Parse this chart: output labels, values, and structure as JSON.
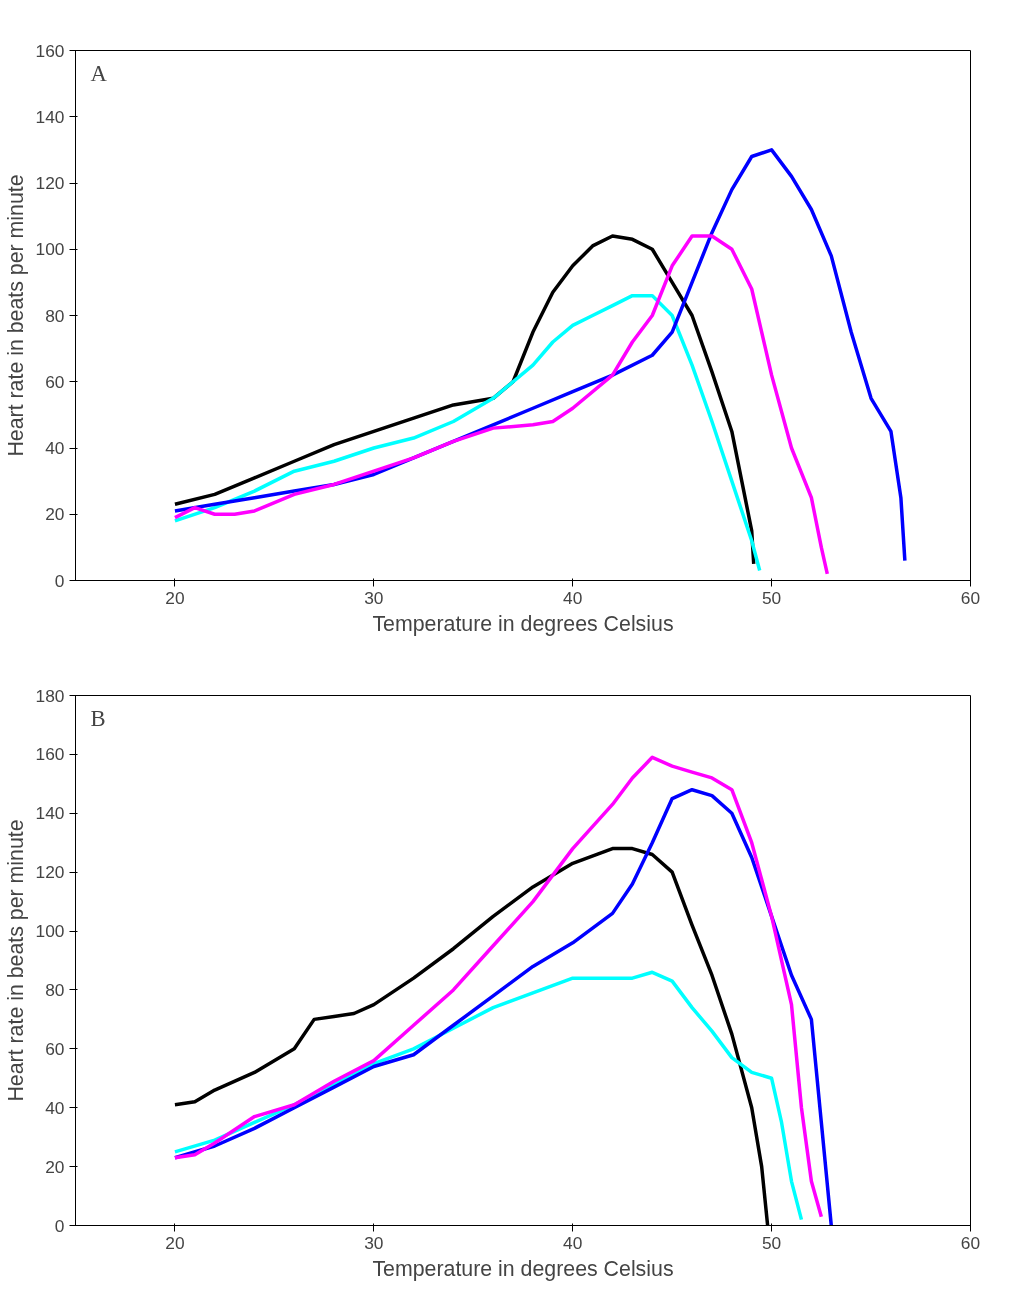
{
  "chart_data": [
    {
      "type": "line",
      "xlabel": "Temperature in degrees Celsius",
      "ylabel": "Heart rate in beats per minute",
      "annotations": [
        "A"
      ],
      "xlim": [
        15,
        60
      ],
      "xticks": [
        20,
        30,
        40,
        50,
        60
      ],
      "ylim": [
        0,
        160
      ],
      "yticks": [
        0,
        20,
        40,
        60,
        80,
        100,
        120,
        140,
        160
      ],
      "grid": false,
      "series": [
        {
          "color": "#000000",
          "x": [
            20,
            22,
            24,
            26,
            28,
            30,
            32,
            34,
            36,
            37,
            38,
            39,
            40,
            41,
            42,
            43,
            44,
            45,
            46,
            47,
            48,
            48.5,
            49,
            49.1
          ],
          "values": [
            23,
            26,
            31,
            36,
            41,
            45,
            49,
            53,
            55,
            60,
            75,
            87,
            95,
            101,
            104,
            103,
            100,
            90,
            80,
            63,
            45,
            30,
            15,
            5
          ]
        },
        {
          "color": "#00ffff",
          "x": [
            20,
            22,
            24,
            26,
            28,
            30,
            32,
            34,
            36,
            38,
            39,
            40,
            41,
            42,
            43,
            44,
            45,
            46,
            47,
            48,
            49,
            49.4
          ],
          "values": [
            18,
            22,
            27,
            33,
            36,
            40,
            43,
            48,
            55,
            65,
            72,
            77,
            80,
            83,
            86,
            86,
            80,
            65,
            48,
            30,
            12,
            3
          ]
        },
        {
          "color": "#0000ff",
          "x": [
            20,
            22,
            24,
            26,
            28,
            30,
            32,
            34,
            36,
            38,
            40,
            42,
            44,
            45,
            46,
            47,
            48,
            49,
            50,
            51,
            52,
            53,
            54,
            55,
            56,
            56.5,
            56.7
          ],
          "values": [
            21,
            23,
            25,
            27,
            29,
            32,
            37,
            42,
            47,
            52,
            57,
            62,
            68,
            75,
            90,
            105,
            118,
            128,
            130,
            122,
            112,
            98,
            75,
            55,
            45,
            25,
            6
          ]
        },
        {
          "color": "#ff00ff",
          "x": [
            20,
            21,
            22,
            23,
            24,
            26,
            28,
            30,
            32,
            34,
            36,
            38,
            39,
            40,
            42,
            43,
            44,
            45,
            46,
            47,
            48,
            49,
            50,
            51,
            52,
            52.5,
            52.8
          ],
          "values": [
            19,
            22,
            20,
            20,
            21,
            26,
            29,
            33,
            37,
            42,
            46,
            47,
            48,
            52,
            62,
            72,
            80,
            95,
            104,
            104,
            100,
            88,
            62,
            40,
            25,
            10,
            2
          ]
        }
      ]
    },
    {
      "type": "line",
      "xlabel": "Temperature in degrees Celsius",
      "ylabel": "Heart rate in beats per minute",
      "annotations": [
        "B"
      ],
      "xlim": [
        15,
        60
      ],
      "xticks": [
        20,
        30,
        40,
        50,
        60
      ],
      "ylim": [
        0,
        180
      ],
      "yticks": [
        0,
        20,
        40,
        60,
        80,
        100,
        120,
        140,
        160,
        180
      ],
      "grid": false,
      "series": [
        {
          "color": "#000000",
          "x": [
            20,
            21,
            22,
            24,
            26,
            27,
            28,
            29,
            30,
            32,
            34,
            36,
            38,
            40,
            42,
            43,
            44,
            45,
            46,
            47,
            48,
            49,
            49.5,
            49.8
          ],
          "values": [
            41,
            42,
            46,
            52,
            60,
            70,
            71,
            72,
            75,
            84,
            94,
            105,
            115,
            123,
            128,
            128,
            126,
            120,
            102,
            85,
            65,
            40,
            20,
            0
          ]
        },
        {
          "color": "#00ffff",
          "x": [
            20,
            22,
            24,
            26,
            28,
            30,
            32,
            34,
            36,
            38,
            40,
            42,
            43,
            44,
            45,
            46,
            47,
            48,
            49,
            50,
            50.5,
            51,
            51.5
          ],
          "values": [
            25,
            29,
            35,
            41,
            48,
            55,
            60,
            67,
            74,
            79,
            84,
            84,
            84,
            86,
            83,
            74,
            66,
            57,
            52,
            50,
            35,
            15,
            2
          ]
        },
        {
          "color": "#0000ff",
          "x": [
            20,
            22,
            24,
            26,
            28,
            30,
            32,
            34,
            36,
            38,
            40,
            42,
            43,
            44,
            45,
            46,
            47,
            48,
            49,
            50,
            51,
            52,
            52.5,
            53
          ],
          "values": [
            23,
            27,
            33,
            40,
            47,
            54,
            58,
            68,
            78,
            88,
            96,
            106,
            116,
            130,
            145,
            148,
            146,
            140,
            125,
            105,
            85,
            70,
            35,
            0
          ]
        },
        {
          "color": "#ff00ff",
          "x": [
            20,
            21,
            22,
            24,
            26,
            28,
            30,
            32,
            34,
            36,
            38,
            40,
            42,
            43,
            44,
            45,
            46,
            47,
            48,
            49,
            50,
            51,
            51.5,
            52,
            52.5
          ],
          "values": [
            23,
            24,
            28,
            37,
            41,
            49,
            56,
            68,
            80,
            95,
            110,
            128,
            143,
            152,
            159,
            156,
            154,
            152,
            148,
            130,
            105,
            75,
            40,
            15,
            3
          ]
        }
      ]
    }
  ]
}
